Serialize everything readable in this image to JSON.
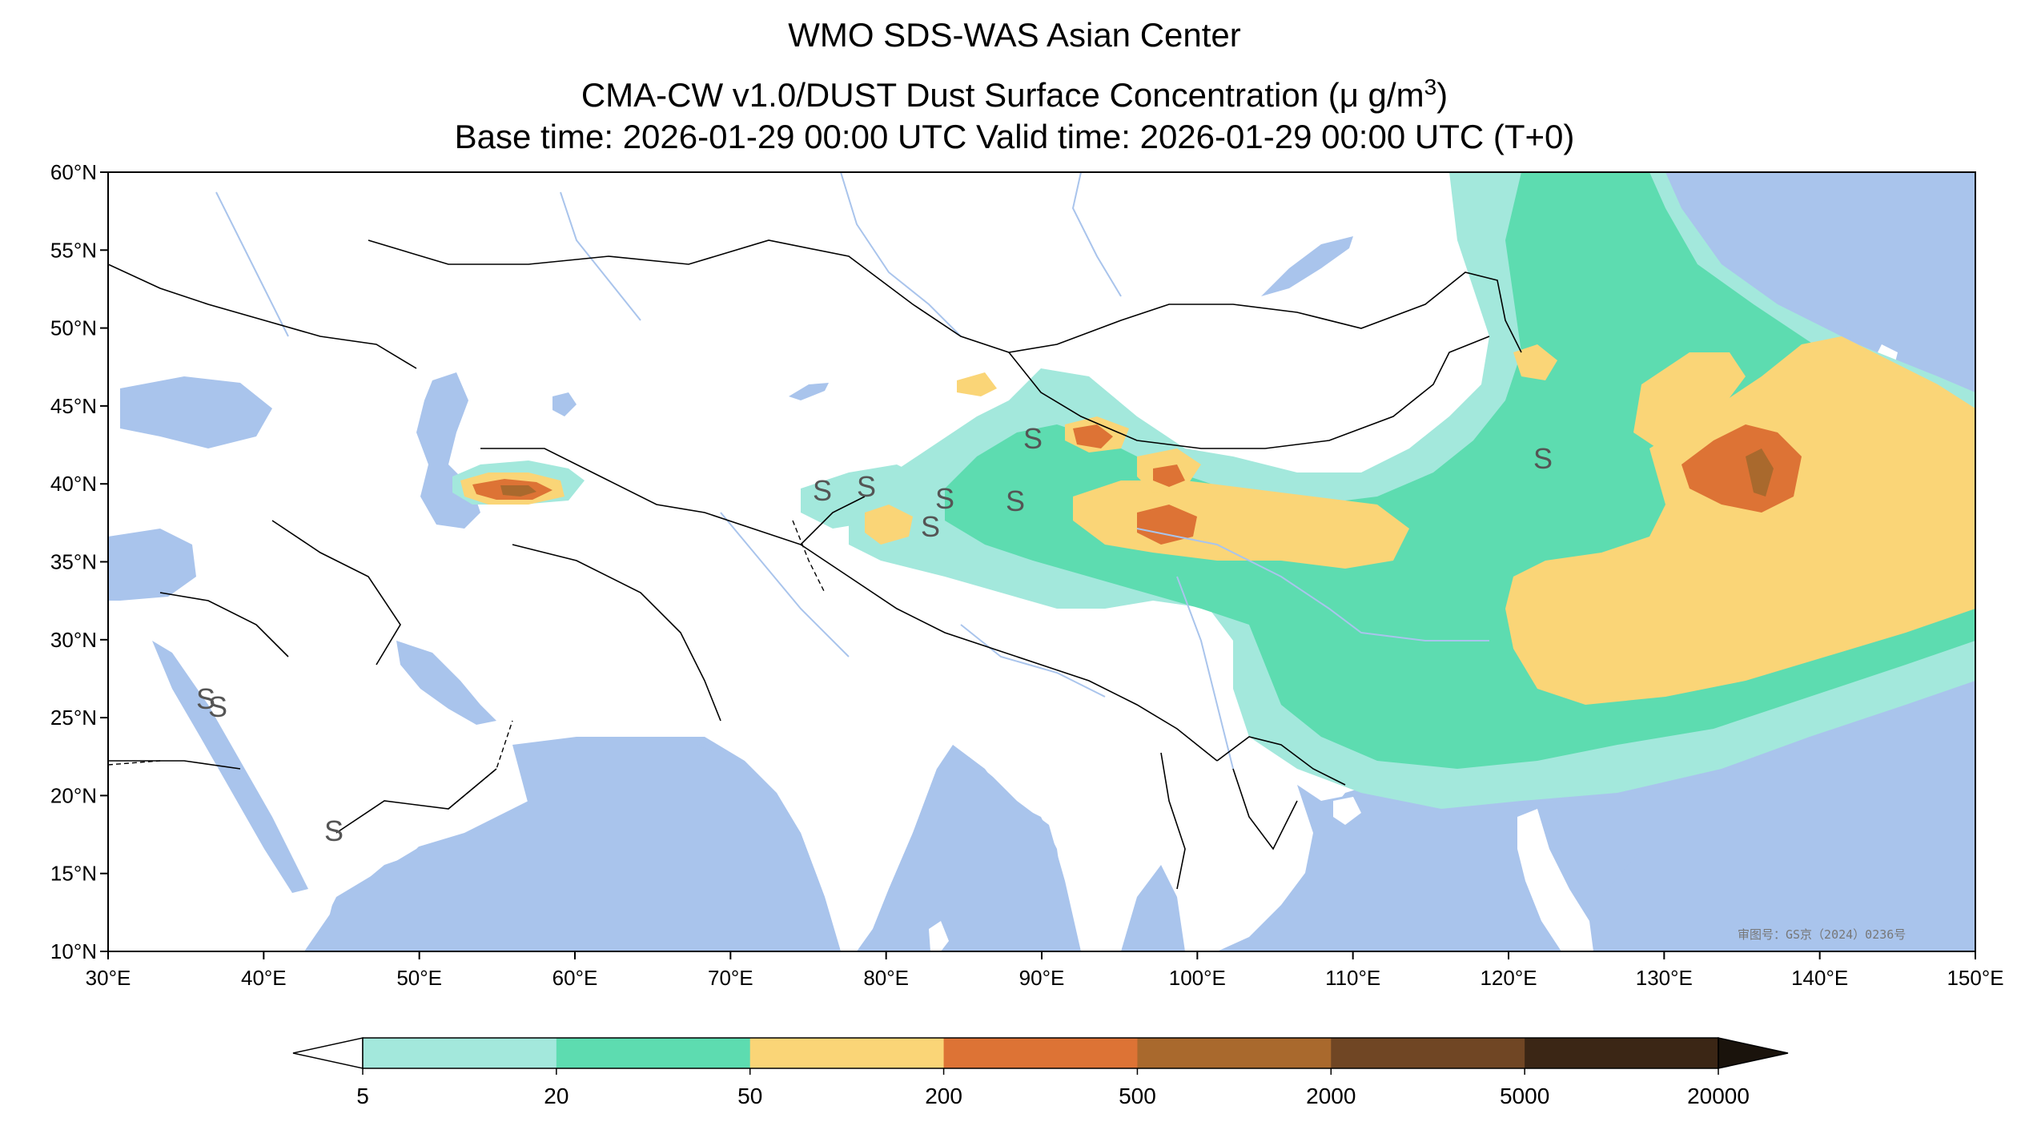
{
  "title": {
    "line1": "WMO SDS-WAS Asian Center",
    "line2_prefix": "CMA-CW v1.0/DUST Dust Surface Concentration (μ g/m",
    "line2_sup": "3",
    "line2_suffix": ")",
    "line3": "Base time: 2026-01-29 00:00 UTC Valid time: 2026-01-29 00:00 UTC (T+0)"
  },
  "map": {
    "lon_range": [
      30,
      150
    ],
    "lat_range": [
      10,
      60
    ],
    "x_ticks": [
      "30°E",
      "40°E",
      "50°E",
      "60°E",
      "70°E",
      "80°E",
      "90°E",
      "100°E",
      "110°E",
      "120°E",
      "130°E",
      "140°E",
      "150°E"
    ],
    "y_ticks": [
      "60°N",
      "55°N",
      "50°N",
      "45°N",
      "40°N",
      "35°N",
      "30°N",
      "25°N",
      "20°N",
      "15°N",
      "10°N"
    ],
    "review_number": "审图号：GS京（2024）0236号",
    "sand_marker": "S",
    "colors": {
      "ocean": "#a9c4ec",
      "land": "#ffffff",
      "border": "#000000",
      "river": "#a9c4ec"
    }
  },
  "colorbar": {
    "labels": [
      "5",
      "20",
      "50",
      "200",
      "500",
      "2000",
      "5000",
      "20000"
    ],
    "colors": [
      "#a3e8dc",
      "#5ddcb0",
      "#fad577",
      "#dd7335",
      "#a9692d",
      "#704624",
      "#3b2615"
    ],
    "under_color": "#ffffff",
    "over_color": "#1a130c"
  }
}
